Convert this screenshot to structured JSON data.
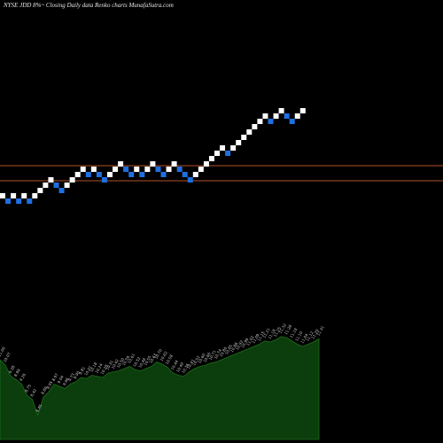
{
  "chart_data": {
    "type": "renko",
    "title": "NYSE JDD 8%~  Closing Daily data  Renko  charts MunafaSutra.com",
    "colors": {
      "background": "#000000",
      "up_brick": "#ffffff",
      "down_brick": "#1f6fe0",
      "reference_line": "#b0522a",
      "volume_fill": "#0c3d0c",
      "volume_stroke": "#1d6e1d",
      "volume_label": "#cfcfcf"
    },
    "price_ylim": [
      0,
      500
    ],
    "reference_lines": [
      313,
      296
    ],
    "bricks": [
      {
        "direction": "up",
        "bottom": 276
      },
      {
        "direction": "down",
        "bottom": 270
      },
      {
        "direction": "up",
        "bottom": 276
      },
      {
        "direction": "down",
        "bottom": 270
      },
      {
        "direction": "up",
        "bottom": 276
      },
      {
        "direction": "down",
        "bottom": 270
      },
      {
        "direction": "up",
        "bottom": 276
      },
      {
        "direction": "up",
        "bottom": 282
      },
      {
        "direction": "up",
        "bottom": 288
      },
      {
        "direction": "up",
        "bottom": 294
      },
      {
        "direction": "down",
        "bottom": 288
      },
      {
        "direction": "down",
        "bottom": 282
      },
      {
        "direction": "up",
        "bottom": 288
      },
      {
        "direction": "up",
        "bottom": 294
      },
      {
        "direction": "up",
        "bottom": 300
      },
      {
        "direction": "up",
        "bottom": 306
      },
      {
        "direction": "down",
        "bottom": 300
      },
      {
        "direction": "up",
        "bottom": 306
      },
      {
        "direction": "down",
        "bottom": 300
      },
      {
        "direction": "down",
        "bottom": 294
      },
      {
        "direction": "up",
        "bottom": 300
      },
      {
        "direction": "up",
        "bottom": 306
      },
      {
        "direction": "up",
        "bottom": 312
      },
      {
        "direction": "down",
        "bottom": 306
      },
      {
        "direction": "down",
        "bottom": 300
      },
      {
        "direction": "up",
        "bottom": 306
      },
      {
        "direction": "down",
        "bottom": 300
      },
      {
        "direction": "up",
        "bottom": 306
      },
      {
        "direction": "up",
        "bottom": 312
      },
      {
        "direction": "down",
        "bottom": 306
      },
      {
        "direction": "down",
        "bottom": 300
      },
      {
        "direction": "up",
        "bottom": 306
      },
      {
        "direction": "up",
        "bottom": 312
      },
      {
        "direction": "down",
        "bottom": 306
      },
      {
        "direction": "down",
        "bottom": 300
      },
      {
        "direction": "down",
        "bottom": 294
      },
      {
        "direction": "up",
        "bottom": 300
      },
      {
        "direction": "up",
        "bottom": 306
      },
      {
        "direction": "up",
        "bottom": 312
      },
      {
        "direction": "up",
        "bottom": 318
      },
      {
        "direction": "up",
        "bottom": 324
      },
      {
        "direction": "up",
        "bottom": 330
      },
      {
        "direction": "down",
        "bottom": 324
      },
      {
        "direction": "up",
        "bottom": 330
      },
      {
        "direction": "up",
        "bottom": 336
      },
      {
        "direction": "up",
        "bottom": 342
      },
      {
        "direction": "up",
        "bottom": 348
      },
      {
        "direction": "up",
        "bottom": 354
      },
      {
        "direction": "up",
        "bottom": 360
      },
      {
        "direction": "up",
        "bottom": 366
      },
      {
        "direction": "down",
        "bottom": 360
      },
      {
        "direction": "up",
        "bottom": 366
      },
      {
        "direction": "up",
        "bottom": 372
      },
      {
        "direction": "down",
        "bottom": 366
      },
      {
        "direction": "down",
        "bottom": 360
      },
      {
        "direction": "up",
        "bottom": 366
      },
      {
        "direction": "up",
        "bottom": 372
      }
    ],
    "volume_ylim": [
      0,
      100
    ],
    "volume_series": [
      {
        "v": 72,
        "label": "11.00"
      },
      {
        "v": 67,
        "label": "10.07"
      },
      {
        "v": 57,
        "label": "9.28"
      },
      {
        "v": 54,
        "label": "8.99"
      },
      {
        "v": 50,
        "label": "9.26"
      },
      {
        "v": 40,
        "label": "8.75"
      },
      {
        "v": 36,
        "label": "8.42"
      },
      {
        "v": 22,
        "label": "8.45"
      },
      {
        "v": 38,
        "label": "8.80"
      },
      {
        "v": 43,
        "label": "8.95"
      },
      {
        "v": 50,
        "label": "8.97"
      },
      {
        "v": 48,
        "label": "9.04"
      },
      {
        "v": 46,
        "label": "9.66"
      },
      {
        "v": 50,
        "label": "9.73"
      },
      {
        "v": 52,
        "label": "9.90"
      },
      {
        "v": 56,
        "label": "9.81"
      },
      {
        "v": 55,
        "label": "10.01"
      },
      {
        "v": 58,
        "label": "10.18"
      },
      {
        "v": 57,
        "label": "10.24"
      },
      {
        "v": 56,
        "label": "10.28"
      },
      {
        "v": 60,
        "label": "10.31"
      },
      {
        "v": 61,
        "label": "10.42"
      },
      {
        "v": 62,
        "label": "10.50"
      },
      {
        "v": 64,
        "label": "10.59"
      },
      {
        "v": 66,
        "label": "10.61"
      },
      {
        "v": 63,
        "label": "10.52"
      },
      {
        "v": 62,
        "label": "10.49"
      },
      {
        "v": 64,
        "label": "10.55"
      },
      {
        "v": 66,
        "label": "10.63"
      },
      {
        "v": 70,
        "label": "10.70"
      },
      {
        "v": 68,
        "label": "10.62"
      },
      {
        "v": 65,
        "label": "10.58"
      },
      {
        "v": 60,
        "label": "10.44"
      },
      {
        "v": 58,
        "label": "10.40"
      },
      {
        "v": 57,
        "label": "10.36"
      },
      {
        "v": 61,
        "label": "10.41"
      },
      {
        "v": 64,
        "label": "10.52"
      },
      {
        "v": 66,
        "label": "10.60"
      },
      {
        "v": 67,
        "label": "10.66"
      },
      {
        "v": 69,
        "label": "10.71"
      },
      {
        "v": 70,
        "label": "10.74"
      },
      {
        "v": 72,
        "label": "10.80"
      },
      {
        "v": 74,
        "label": "10.85"
      },
      {
        "v": 76,
        "label": "10.88"
      },
      {
        "v": 78,
        "label": "10.92"
      },
      {
        "v": 80,
        "label": "10.96"
      },
      {
        "v": 82,
        "label": "11.02"
      },
      {
        "v": 84,
        "label": "11.09"
      },
      {
        "v": 86,
        "label": "11.15"
      },
      {
        "v": 89,
        "label": "11.21"
      },
      {
        "v": 88,
        "label": "11.18"
      },
      {
        "v": 90,
        "label": "11.25"
      },
      {
        "v": 93,
        "label": "11.32"
      },
      {
        "v": 92,
        "label": "11.28"
      },
      {
        "v": 89,
        "label": "11.19"
      },
      {
        "v": 86,
        "label": "11.10"
      },
      {
        "v": 84,
        "label": "11.04"
      },
      {
        "v": 86,
        "label": "11.12"
      },
      {
        "v": 88,
        "label": "11.20"
      },
      {
        "v": 91,
        "label": "11.31"
      }
    ]
  }
}
